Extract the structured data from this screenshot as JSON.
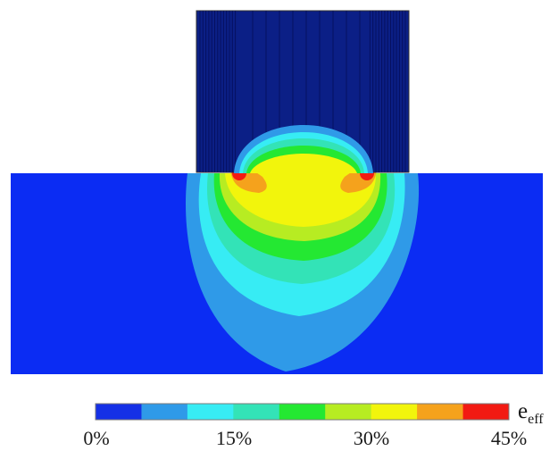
{
  "colors": {
    "block_fill": "#0b1f86",
    "block_stripe": "#061060",
    "substrate": "#0b2cf3",
    "outline": "#333333"
  },
  "contour_levels": [
    {
      "level": 0,
      "color": "#1530e6"
    },
    {
      "level": 1,
      "color": "#2f9ae8"
    },
    {
      "level": 2,
      "color": "#37ecf4"
    },
    {
      "level": 3,
      "color": "#33e3b7"
    },
    {
      "level": 4,
      "color": "#24e832"
    },
    {
      "level": 5,
      "color": "#b7ec22"
    },
    {
      "level": 6,
      "color": "#f2f50c"
    },
    {
      "level": 7,
      "color": "#f5a21c"
    },
    {
      "level": 8,
      "color": "#f21a12"
    }
  ],
  "colorbar": {
    "title_main": "e",
    "title_sub": "eff",
    "tick_labels": [
      "0%",
      "15%",
      "30%",
      "45%"
    ],
    "range_percent": [
      0,
      45
    ]
  }
}
